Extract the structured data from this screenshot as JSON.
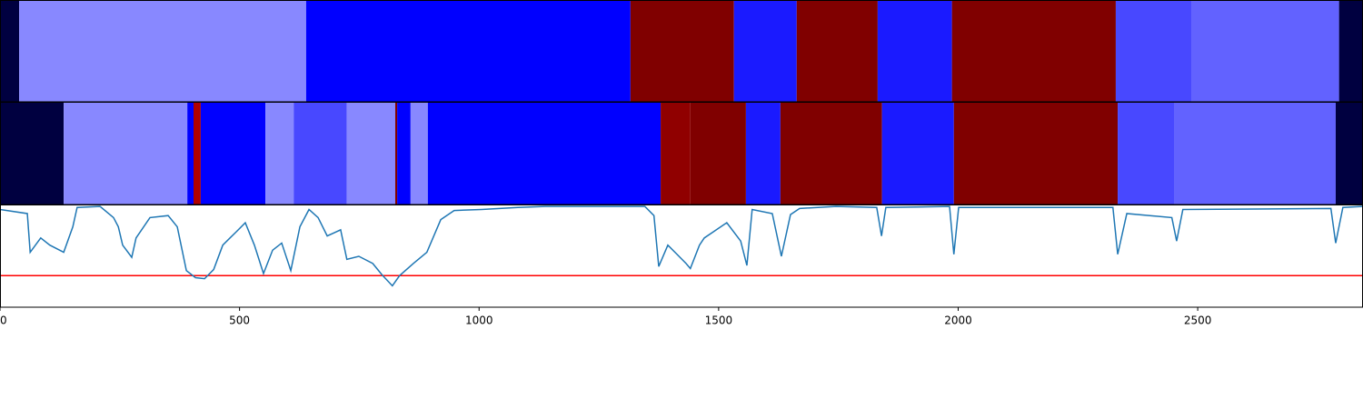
{
  "chart_data": {
    "type": "line",
    "xlim": [
      0,
      2845
    ],
    "xticks": [
      0,
      500,
      1000,
      1500,
      2000,
      2500
    ],
    "ylim": [
      0,
      1
    ],
    "threshold": 0.31,
    "threshold_color": "#ff0000",
    "segment_rows": [
      [
        {
          "start": 0,
          "end": 40,
          "color": "#000040"
        },
        {
          "start": 40,
          "end": 639,
          "color": "#8888ff"
        },
        {
          "start": 639,
          "end": 1316,
          "color": "#0000ff"
        },
        {
          "start": 1316,
          "end": 1532,
          "color": "#800000"
        },
        {
          "start": 1532,
          "end": 1663,
          "color": "#1a1aff"
        },
        {
          "start": 1663,
          "end": 1832,
          "color": "#800000"
        },
        {
          "start": 1832,
          "end": 1987,
          "color": "#1a1aff"
        },
        {
          "start": 1987,
          "end": 2329,
          "color": "#800000"
        },
        {
          "start": 2329,
          "end": 2488,
          "color": "#4848ff"
        },
        {
          "start": 2488,
          "end": 2795,
          "color": "#6262ff"
        },
        {
          "start": 2795,
          "end": 2845,
          "color": "#000040"
        }
      ],
      [
        {
          "start": 0,
          "end": 133,
          "color": "#000040"
        },
        {
          "start": 133,
          "end": 391,
          "color": "#8888ff"
        },
        {
          "start": 391,
          "end": 404,
          "color": "#0000ff"
        },
        {
          "start": 404,
          "end": 419,
          "color": "#b00000"
        },
        {
          "start": 419,
          "end": 554,
          "color": "#0000ff"
        },
        {
          "start": 554,
          "end": 613,
          "color": "#8888ff"
        },
        {
          "start": 613,
          "end": 724,
          "color": "#4848ff"
        },
        {
          "start": 724,
          "end": 825,
          "color": "#8888ff"
        },
        {
          "start": 825,
          "end": 829,
          "color": "#800000"
        },
        {
          "start": 829,
          "end": 857,
          "color": "#0000ff"
        },
        {
          "start": 857,
          "end": 893,
          "color": "#8888ff"
        },
        {
          "start": 893,
          "end": 1379,
          "color": "#0000ff"
        },
        {
          "start": 1379,
          "end": 1441,
          "color": "#900000"
        },
        {
          "start": 1441,
          "end": 1557,
          "color": "#800000"
        },
        {
          "start": 1557,
          "end": 1629,
          "color": "#1a1aff"
        },
        {
          "start": 1629,
          "end": 1841,
          "color": "#800000"
        },
        {
          "start": 1841,
          "end": 1991,
          "color": "#1a1aff"
        },
        {
          "start": 1991,
          "end": 2333,
          "color": "#800000"
        },
        {
          "start": 2333,
          "end": 2452,
          "color": "#4848ff"
        },
        {
          "start": 2452,
          "end": 2788,
          "color": "#6262ff"
        },
        {
          "start": 2788,
          "end": 2845,
          "color": "#000040"
        }
      ]
    ],
    "x": [
      0,
      57,
      63,
      85,
      104,
      133,
      152,
      161,
      209,
      237,
      247,
      256,
      275,
      284,
      313,
      351,
      370,
      389,
      408,
      427,
      446,
      465,
      493,
      512,
      531,
      550,
      569,
      588,
      607,
      626,
      645,
      664,
      683,
      711,
      724,
      749,
      778,
      797,
      819,
      834,
      863,
      891,
      920,
      948,
      1005,
      1081,
      1138,
      1346,
      1365,
      1375,
      1394,
      1413,
      1432,
      1441,
      1460,
      1470,
      1517,
      1546,
      1559,
      1570,
      1612,
      1631,
      1650,
      1669,
      1745,
      1830,
      1840,
      1849,
      1982,
      1991,
      2001,
      2323,
      2333,
      2352,
      2446,
      2456,
      2469,
      2778,
      2788,
      2803,
      2845
    ],
    "series": [
      {
        "color": "#1f77b4",
        "values": [
          0.96,
          0.92,
          0.54,
          0.68,
          0.61,
          0.54,
          0.79,
          0.98,
          0.99,
          0.88,
          0.79,
          0.61,
          0.49,
          0.68,
          0.88,
          0.9,
          0.79,
          0.36,
          0.29,
          0.28,
          0.37,
          0.61,
          0.74,
          0.83,
          0.61,
          0.33,
          0.56,
          0.63,
          0.36,
          0.79,
          0.96,
          0.88,
          0.7,
          0.76,
          0.47,
          0.5,
          0.43,
          0.32,
          0.21,
          0.31,
          0.43,
          0.54,
          0.86,
          0.95,
          0.96,
          0.98,
          0.99,
          0.99,
          0.9,
          0.4,
          0.61,
          0.52,
          0.43,
          0.38,
          0.61,
          0.68,
          0.83,
          0.65,
          0.41,
          0.96,
          0.92,
          0.5,
          0.91,
          0.97,
          0.99,
          0.98,
          0.7,
          0.98,
          0.99,
          0.52,
          0.98,
          0.98,
          0.52,
          0.92,
          0.88,
          0.65,
          0.96,
          0.97,
          0.63,
          0.98,
          0.99
        ]
      }
    ]
  }
}
